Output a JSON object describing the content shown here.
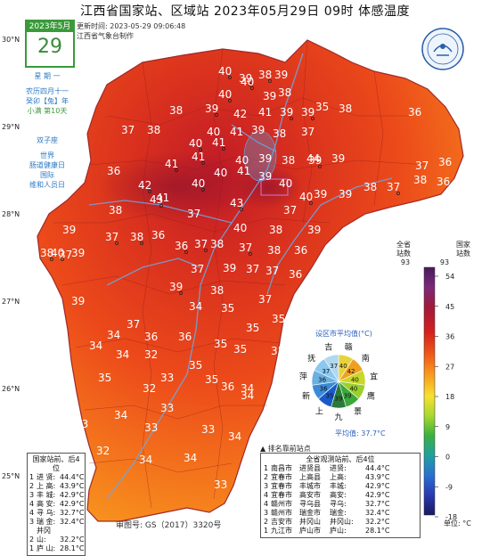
{
  "title": "江西省国家站、区域站   2023年05月29日  09时   体感温度",
  "meta": {
    "update_time": "更新时间: 2023-05-29 09:06:48",
    "producer": "江西省气象台制作"
  },
  "calendar": {
    "month": "2023年5月",
    "day": "29",
    "weekday": "星 期 一",
    "lunar": "农历四月十一",
    "ganzhi": "癸卯【兔】年",
    "solar_term": "小满 第10天",
    "zodiac": "双子座",
    "events": [
      "世界",
      "肠道健康日",
      "国际",
      "维和人员日"
    ]
  },
  "latitude_labels": [
    "30°N",
    "29°N",
    "28°N",
    "27°N",
    "26°N",
    "25°N"
  ],
  "scale": {
    "head_national": "全省\n站数",
    "head_regional": "国家\n站数",
    "count_national": "93",
    "count_regional": "93",
    "ticks": [
      "54",
      "45",
      "36",
      "27",
      "18",
      "9",
      "0",
      "-9",
      "-18"
    ],
    "unit": "单位: °C"
  },
  "map_values": [
    {
      "v": "40",
      "dot": true
    },
    {
      "v": "39",
      "dot": true
    },
    {
      "v": "38",
      "dot": true
    },
    {
      "v": "39",
      "dot": false
    },
    {
      "v": "40",
      "dot": true
    },
    {
      "v": "40",
      "dot": true
    },
    {
      "v": "39",
      "dot": false
    },
    {
      "v": "38",
      "dot": false
    },
    {
      "v": "38",
      "dot": false
    },
    {
      "v": "39",
      "dot": true
    },
    {
      "v": "35",
      "dot": false
    },
    {
      "v": "38",
      "dot": false
    },
    {
      "v": "42",
      "dot": false
    },
    {
      "v": "41",
      "dot": false
    },
    {
      "v": "39",
      "dot": true
    },
    {
      "v": "39",
      "dot": true
    },
    {
      "v": "36",
      "dot": false
    },
    {
      "v": "37",
      "dot": false
    },
    {
      "v": "38",
      "dot": false
    },
    {
      "v": "40",
      "dot": false
    },
    {
      "v": "41",
      "dot": false
    },
    {
      "v": "39",
      "dot": false
    },
    {
      "v": "38",
      "dot": false
    },
    {
      "v": "37",
      "dot": false
    },
    {
      "v": "40",
      "dot": true
    },
    {
      "v": "41",
      "dot": true
    },
    {
      "v": "40",
      "dot": false
    },
    {
      "v": "39",
      "dot": false
    },
    {
      "v": "38",
      "dot": false
    },
    {
      "v": "39",
      "dot": true
    },
    {
      "v": "39",
      "dot": false
    },
    {
      "v": "37",
      "dot": false
    },
    {
      "v": "36",
      "dot": false
    },
    {
      "v": "41",
      "dot": true
    },
    {
      "v": "41",
      "dot": true
    },
    {
      "v": "42",
      "dot": true
    },
    {
      "v": "40",
      "dot": true
    },
    {
      "v": "40",
      "dot": false
    },
    {
      "v": "41",
      "dot": false
    },
    {
      "v": "39",
      "dot": false
    },
    {
      "v": "40",
      "dot": false
    },
    {
      "v": "44",
      "dot": false
    },
    {
      "v": "39",
      "dot": false
    },
    {
      "v": "40",
      "dot": true
    },
    {
      "v": "39",
      "dot": false
    },
    {
      "v": "38",
      "dot": false
    },
    {
      "v": "37",
      "dot": true
    },
    {
      "v": "38",
      "dot": false
    },
    {
      "v": "36",
      "dot": false
    },
    {
      "v": "36",
      "dot": false
    },
    {
      "v": "37",
      "dot": false
    },
    {
      "v": "38",
      "dot": false
    },
    {
      "v": "43",
      "dot": true
    },
    {
      "v": "41",
      "dot": false
    },
    {
      "v": "43",
      "dot": true
    },
    {
      "v": "39",
      "dot": false
    },
    {
      "v": "37",
      "dot": false
    },
    {
      "v": "40",
      "dot": false
    },
    {
      "v": "38",
      "dot": false
    },
    {
      "v": "39",
      "dot": false
    },
    {
      "v": "37",
      "dot": true
    },
    {
      "v": "36",
      "dot": false
    },
    {
      "v": "38",
      "dot": true
    },
    {
      "v": "36",
      "dot": true
    },
    {
      "v": "37",
      "dot": true
    },
    {
      "v": "38",
      "dot": false
    },
    {
      "v": "37",
      "dot": true
    },
    {
      "v": "38",
      "dot": false
    },
    {
      "v": "36",
      "dot": false
    },
    {
      "v": "37",
      "dot": false
    },
    {
      "v": "38",
      "dot": true
    },
    {
      "v": "40",
      "dot": true
    },
    {
      "v": "39",
      "dot": false
    },
    {
      "v": "37",
      "dot": false
    },
    {
      "v": "39",
      "dot": false
    },
    {
      "v": "37",
      "dot": false
    },
    {
      "v": "37",
      "dot": false
    },
    {
      "v": "36",
      "dot": false
    },
    {
      "v": "38",
      "dot": false
    },
    {
      "v": "35",
      "dot": false
    },
    {
      "v": "39",
      "dot": true
    },
    {
      "v": "38",
      "dot": false
    },
    {
      "v": "39",
      "dot": false
    },
    {
      "v": "34",
      "dot": false
    },
    {
      "v": "35",
      "dot": false
    },
    {
      "v": "37",
      "dot": false
    },
    {
      "v": "37",
      "dot": false
    },
    {
      "v": "35",
      "dot": false
    },
    {
      "v": "34",
      "dot": false
    },
    {
      "v": "36",
      "dot": false
    },
    {
      "v": "36",
      "dot": false
    },
    {
      "v": "35",
      "dot": false
    },
    {
      "v": "35",
      "dot": false
    },
    {
      "v": "35",
      "dot": false
    },
    {
      "v": "34",
      "dot": false
    },
    {
      "v": "34",
      "dot": false
    },
    {
      "v": "32",
      "dot": false
    },
    {
      "v": "35",
      "dot": false
    },
    {
      "v": "35",
      "dot": false
    },
    {
      "v": "33",
      "dot": false
    },
    {
      "v": "35",
      "dot": false
    },
    {
      "v": "36",
      "dot": false
    },
    {
      "v": "34",
      "dot": false
    },
    {
      "v": "35",
      "dot": false
    },
    {
      "v": "32",
      "dot": false
    },
    {
      "v": "33",
      "dot": false
    },
    {
      "v": "34",
      "dot": false
    },
    {
      "v": "36",
      "dot": false
    },
    {
      "v": "33",
      "dot": false
    },
    {
      "v": "34",
      "dot": false
    },
    {
      "v": "33",
      "dot": false
    },
    {
      "v": "33",
      "dot": false
    },
    {
      "v": "34",
      "dot": false
    },
    {
      "v": "32",
      "dot": false
    },
    {
      "v": "34",
      "dot": false
    },
    {
      "v": "34",
      "dot": false
    },
    {
      "v": "33",
      "dot": false
    }
  ],
  "region_avg": {
    "title": "设区市平均值(°C)",
    "segments": [
      {
        "name": "赣",
        "value": "40",
        "color": "#e8d23a"
      },
      {
        "name": "南",
        "value": "42",
        "color": "#f0a020"
      },
      {
        "name": "宜",
        "value": "40",
        "color": "#c8d82a"
      },
      {
        "name": "鹰",
        "value": "40",
        "color": "#9ad02a"
      },
      {
        "name": "景",
        "value": "39",
        "color": "#3aa83a"
      },
      {
        "name": "九",
        "value": "39",
        "color": "#2a7a3a"
      },
      {
        "name": "上",
        "value": "35",
        "color": "#1a5ac8"
      },
      {
        "name": "新",
        "value": "36",
        "color": "#3a8ad8"
      },
      {
        "name": "萍",
        "value": "36",
        "color": "#6ab0e0"
      },
      {
        "name": "抚",
        "value": "37",
        "color": "#8ac8f0"
      },
      {
        "name": "吉",
        "value": "37",
        "color": "#b0d8f0"
      }
    ],
    "average": "平均值: 37.7°C"
  },
  "rank_note": "排名靠前站点",
  "national_rank": {
    "title": "国家站前、后4位",
    "top": [
      {
        "n": "1",
        "name": "进  贤:",
        "val": "44.4°C"
      },
      {
        "n": "2",
        "name": "上  高:",
        "val": "43.9°C"
      },
      {
        "n": "3",
        "name": "丰  城:",
        "val": "42.9°C"
      },
      {
        "n": "4",
        "name": "高  安:",
        "val": "42.9°C"
      }
    ],
    "bottom": [
      {
        "n": "4",
        "name": "寻  乌:",
        "val": "32.7°C"
      },
      {
        "n": "3",
        "name": "瑞  金:",
        "val": "32.4°C"
      },
      {
        "n": "2",
        "name": "井冈山:",
        "val": "32.2°C"
      },
      {
        "n": "1",
        "name": "庐  山:",
        "val": "28.1°C"
      }
    ]
  },
  "regional_rank": {
    "title": "全省观测站前、后4位",
    "top": [
      {
        "n": "1",
        "city": "南昌市",
        "name": "进贤县",
        "st": "进贤:",
        "val": "44.4°C"
      },
      {
        "n": "2",
        "city": "宜春市",
        "name": "上高县",
        "st": "上高:",
        "val": "43.9°C"
      },
      {
        "n": "3",
        "city": "宜春市",
        "name": "丰城市",
        "st": "丰城:",
        "val": "42.9°C"
      },
      {
        "n": "4",
        "city": "宜春市",
        "name": "高安市",
        "st": "高安:",
        "val": "42.9°C"
      }
    ],
    "bottom": [
      {
        "n": "4",
        "city": "赣州市",
        "name": "寻乌县",
        "st": "寻乌:",
        "val": "32.7°C"
      },
      {
        "n": "3",
        "city": "赣州市",
        "name": "瑞金市",
        "st": "瑞金:",
        "val": "32.4°C"
      },
      {
        "n": "2",
        "city": "吉安市",
        "name": "井冈山",
        "st": "井冈山:",
        "val": "32.2°C"
      },
      {
        "n": "1",
        "city": "九江市",
        "name": "庐山市",
        "st": "庐山:",
        "val": "28.1°C"
      }
    ]
  },
  "footer": "审图号: GS（2017）3320号"
}
